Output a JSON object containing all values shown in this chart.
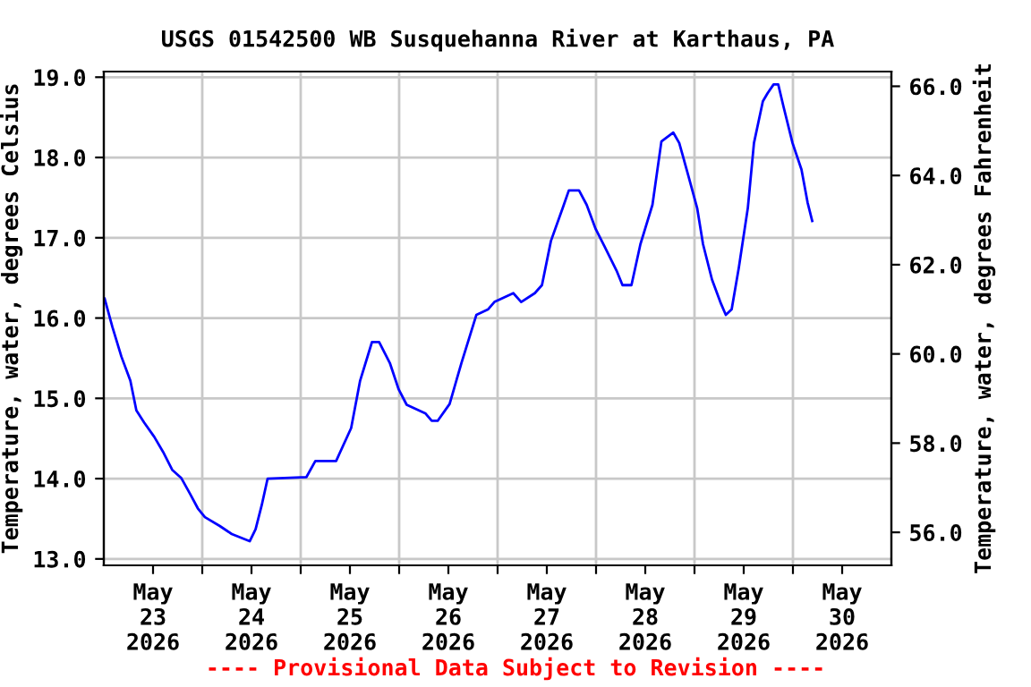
{
  "chart_data": {
    "type": "line",
    "title": "USGS 01542500 WB Susquehanna River at Karthaus, PA",
    "ylabel": "Temperature, water, degrees Celsius",
    "y2label": "Temperature, water, degrees Fahrenheit",
    "annotations": [
      "---- Provisional Data Subject to Revision ----"
    ],
    "x": [
      "2026-05-22T12:13",
      "2026-05-22T14:05",
      "2026-05-22T16:17",
      "2026-05-22T18:28",
      "2026-05-22T19:56",
      "2026-05-22T21:49",
      "2026-05-23T00:18",
      "2026-05-23T02:29",
      "2026-05-23T04:40",
      "2026-05-23T06:51",
      "2026-05-23T09:02",
      "2026-05-23T10:55",
      "2026-05-23T12:39",
      "2026-05-23T16:16",
      "2026-05-23T19:12",
      "2026-05-23T23:34",
      "2026-05-24T01:00",
      "2026-05-24T02:30",
      "2026-05-24T03:56",
      "2026-05-24T13:24",
      "2026-05-24T15:34",
      "2026-05-24T20:38",
      "2026-05-25T00:18",
      "2026-05-25T02:29",
      "2026-05-25T05:22",
      "2026-05-25T07:07",
      "2026-05-25T09:44",
      "2026-05-25T11:54",
      "2026-05-25T13:50",
      "2026-05-25T18:27",
      "2026-05-25T19:56",
      "2026-05-25T21:23",
      "2026-05-26T00:18",
      "2026-05-26T03:11",
      "2026-05-26T06:50",
      "2026-05-26T09:43",
      "2026-05-26T11:13",
      "2026-05-26T15:50",
      "2026-05-26T17:45",
      "2026-05-26T21:04",
      "2026-05-26T22:49",
      "2026-05-27T01:00",
      "2026-05-27T03:56",
      "2026-05-27T05:22",
      "2026-05-27T07:51",
      "2026-05-27T09:43",
      "2026-05-27T11:54",
      "2026-05-27T14:05",
      "2026-05-27T17:00",
      "2026-05-27T18:27",
      "2026-05-27T20:38",
      "2026-05-27T22:49",
      "2026-05-28T01:45",
      "2026-05-28T03:56",
      "2026-05-28T06:50",
      "2026-05-28T08:17",
      "2026-05-28T10:28",
      "2026-05-28T12:39",
      "2026-05-28T14:05",
      "2026-05-28T16:16",
      "2026-05-28T18:27",
      "2026-05-28T19:38",
      "2026-05-28T21:04",
      "2026-05-28T22:49",
      "2026-05-29T01:00",
      "2026-05-29T02:30",
      "2026-05-29T04:40",
      "2026-05-29T05:49",
      "2026-05-29T07:17",
      "2026-05-29T08:25",
      "2026-05-29T09:43",
      "2026-05-29T11:54",
      "2026-05-29T14:05",
      "2026-05-29T15:34",
      "2026-05-29T16:42"
    ],
    "series": [
      {
        "color": "#0000ff",
        "values": [
          16.24,
          15.89,
          15.52,
          15.22,
          14.85,
          14.7,
          14.52,
          14.33,
          14.11,
          14.01,
          13.81,
          13.63,
          13.52,
          13.41,
          13.31,
          13.22,
          13.37,
          13.67,
          14.0,
          14.02,
          14.22,
          14.22,
          14.63,
          15.22,
          15.7,
          15.7,
          15.44,
          15.11,
          14.92,
          14.81,
          14.72,
          14.72,
          14.93,
          15.44,
          16.04,
          16.11,
          16.2,
          16.31,
          16.2,
          16.31,
          16.41,
          16.96,
          17.38,
          17.59,
          17.59,
          17.41,
          17.11,
          16.89,
          16.59,
          16.41,
          16.41,
          16.92,
          17.41,
          18.2,
          18.31,
          18.18,
          17.78,
          17.37,
          16.92,
          16.48,
          16.18,
          16.04,
          16.11,
          16.63,
          17.37,
          18.18,
          18.7,
          18.8,
          18.91,
          18.91,
          18.63,
          18.18,
          17.85,
          17.44,
          17.21
        ]
      }
    ],
    "xlim": [
      "2026-05-22T12:00",
      "2026-05-30T12:00"
    ],
    "xticks": [
      {
        "value": "2026-05-23",
        "label": "May\n23\n2026"
      },
      {
        "value": "2026-05-23T12:00",
        "label": null
      },
      {
        "value": "2026-05-24",
        "label": "May\n24\n2026"
      },
      {
        "value": "2026-05-24T12:00",
        "label": null
      },
      {
        "value": "2026-05-25",
        "label": "May\n25\n2026"
      },
      {
        "value": "2026-05-25T12:00",
        "label": null
      },
      {
        "value": "2026-05-26",
        "label": "May\n26\n2026"
      },
      {
        "value": "2026-05-26T12:00",
        "label": null
      },
      {
        "value": "2026-05-27",
        "label": "May\n27\n2026"
      },
      {
        "value": "2026-05-27T12:00",
        "label": null
      },
      {
        "value": "2026-05-28",
        "label": "May\n28\n2026"
      },
      {
        "value": "2026-05-28T12:00",
        "label": null
      },
      {
        "value": "2026-05-29",
        "label": "May\n29\n2026"
      },
      {
        "value": "2026-05-29T12:00",
        "label": null
      },
      {
        "value": "2026-05-30",
        "label": "May\n30\n2026"
      }
    ],
    "ylim": [
      12.92,
      19.07
    ],
    "yticks": [
      {
        "value": 13,
        "label": "13.0"
      },
      {
        "value": 14,
        "label": "14.0"
      },
      {
        "value": 15,
        "label": "15.0"
      },
      {
        "value": 16,
        "label": "16.0"
      },
      {
        "value": 17,
        "label": "17.0"
      },
      {
        "value": 18,
        "label": "18.0"
      },
      {
        "value": 19,
        "label": "19.0"
      }
    ],
    "y2lim": [
      55.26,
      66.33
    ],
    "y2ticks": [
      {
        "value": 56,
        "label": "56.0"
      },
      {
        "value": 58,
        "label": "58.0"
      },
      {
        "value": 60,
        "label": "60.0"
      },
      {
        "value": 62,
        "label": "62.0"
      },
      {
        "value": 64,
        "label": "64.0"
      },
      {
        "value": 66,
        "label": "66.0"
      }
    ],
    "grid": true,
    "legend": false
  }
}
